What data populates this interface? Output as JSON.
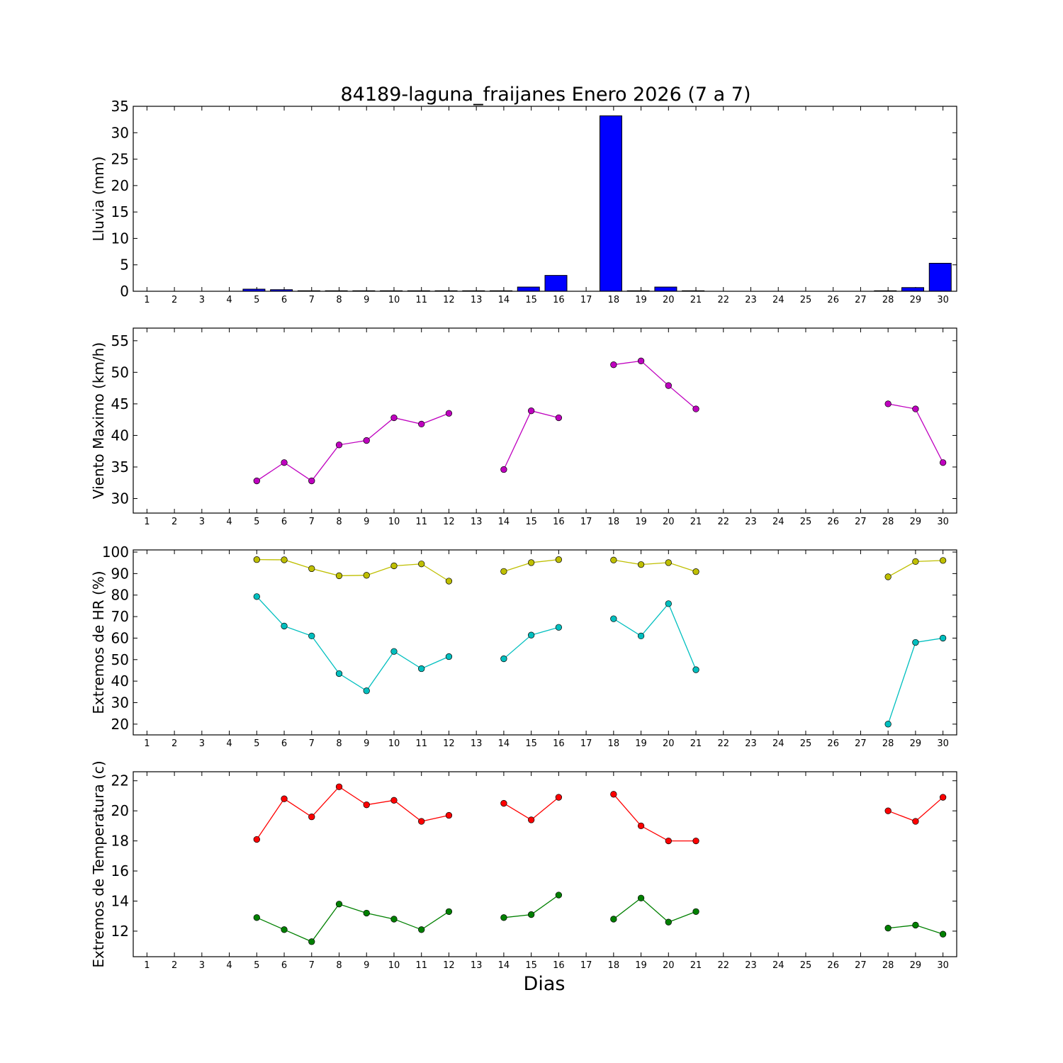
{
  "chart_data": {
    "title": "84189-laguna_fraijanes Enero 2026  (7 a 7)",
    "xlabel": "Dias",
    "days": [
      1,
      2,
      3,
      4,
      5,
      6,
      7,
      8,
      9,
      10,
      11,
      12,
      13,
      14,
      15,
      16,
      17,
      18,
      19,
      20,
      21,
      22,
      23,
      24,
      25,
      26,
      27,
      28,
      29,
      30
    ],
    "xlim": [
      0.5,
      30.5
    ],
    "panels": [
      {
        "id": "lluvia",
        "type": "bar",
        "ylabel": "Lluvia (mm)",
        "ylim": [
          0,
          35
        ],
        "yticks": [
          0,
          5,
          10,
          15,
          20,
          25,
          30,
          35
        ],
        "series": [
          {
            "color": "#0000ff",
            "values": [
              null,
              null,
              null,
              null,
              0.4,
              0.3,
              0.1,
              0.1,
              0.1,
              0.1,
              0.1,
              0.1,
              0.1,
              0.1,
              0.8,
              3.0,
              null,
              33.2,
              0.1,
              0.8,
              0.1,
              null,
              null,
              null,
              null,
              null,
              null,
              0.1,
              0.7,
              5.3
            ]
          }
        ]
      },
      {
        "id": "viento",
        "type": "line",
        "ylabel": "Viento Maximo (km/h)",
        "ylim": [
          27.7,
          57
        ],
        "yticks": [
          30,
          35,
          40,
          45,
          50,
          55
        ],
        "series": [
          {
            "color": "#bf00bf",
            "values": [
              null,
              null,
              null,
              null,
              32.8,
              35.7,
              32.8,
              38.5,
              39.2,
              42.8,
              41.8,
              43.5,
              null,
              34.6,
              43.9,
              42.8,
              null,
              51.2,
              51.8,
              47.9,
              44.2,
              null,
              null,
              null,
              null,
              null,
              null,
              45.0,
              44.2,
              35.7
            ]
          }
        ]
      },
      {
        "id": "hr",
        "type": "line",
        "ylabel": "Extremos de HR (%)",
        "ylim": [
          15,
          101
        ],
        "yticks": [
          20,
          30,
          40,
          50,
          60,
          70,
          80,
          90,
          100
        ],
        "series": [
          {
            "color": "#bfbf00",
            "values": [
              null,
              null,
              null,
              null,
              96.5,
              96.4,
              92.3,
              89.0,
              89.2,
              93.6,
              94.5,
              86.5,
              null,
              91.0,
              95.1,
              96.5,
              null,
              96.3,
              94.2,
              95.1,
              90.9,
              null,
              null,
              null,
              null,
              null,
              null,
              88.5,
              95.6,
              96.1
            ]
          },
          {
            "color": "#00bfbf",
            "values": [
              null,
              null,
              null,
              null,
              79.3,
              65.6,
              61.0,
              43.5,
              35.5,
              53.8,
              45.8,
              51.4,
              null,
              50.4,
              61.4,
              65.0,
              null,
              69.0,
              61.0,
              76.0,
              45.3,
              null,
              null,
              null,
              null,
              null,
              null,
              20.0,
              58.0,
              60.0
            ]
          }
        ]
      },
      {
        "id": "temp",
        "type": "line",
        "ylabel": "Extremos de Temperatura (c)",
        "ylim": [
          10.3,
          22.6
        ],
        "yticks": [
          12,
          14,
          16,
          18,
          20,
          22
        ],
        "series": [
          {
            "color": "#ff0000",
            "values": [
              null,
              null,
              null,
              null,
              18.1,
              20.8,
              19.6,
              21.6,
              20.4,
              20.7,
              19.3,
              19.7,
              null,
              20.5,
              19.4,
              20.9,
              null,
              21.1,
              19.0,
              18.0,
              18.0,
              null,
              null,
              null,
              null,
              null,
              null,
              20.0,
              19.3,
              20.9
            ]
          },
          {
            "color": "#008000",
            "values": [
              null,
              null,
              null,
              null,
              12.9,
              12.1,
              11.3,
              13.8,
              13.2,
              12.8,
              12.1,
              13.3,
              null,
              12.9,
              13.1,
              14.4,
              null,
              12.8,
              14.2,
              12.6,
              13.3,
              null,
              null,
              null,
              null,
              null,
              null,
              12.2,
              12.4,
              11.8
            ]
          }
        ]
      }
    ]
  }
}
